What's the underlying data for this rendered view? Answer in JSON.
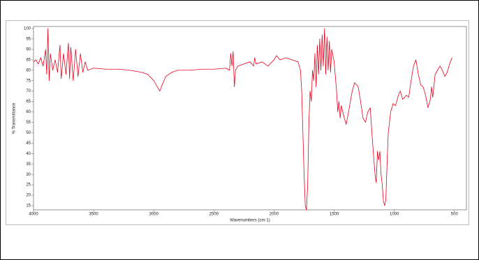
{
  "chart_data": {
    "type": "line",
    "xlabel": "Wavenumbers (cm-1)",
    "ylabel": "% Transmittance",
    "color": "#e8001c",
    "xlim": [
      4000,
      400
    ],
    "xticks": [
      4000,
      3500,
      3000,
      2500,
      2000,
      1500,
      1000,
      500
    ],
    "ylim": [
      13,
      101
    ],
    "yticks": [
      15,
      20,
      25,
      30,
      35,
      40,
      45,
      50,
      55,
      60,
      65,
      70,
      75,
      80,
      85,
      90,
      95,
      100
    ],
    "x": [
      4000,
      3980,
      3960,
      3940,
      3920,
      3900,
      3890,
      3880,
      3870,
      3860,
      3840,
      3820,
      3800,
      3780,
      3770,
      3750,
      3730,
      3710,
      3700,
      3690,
      3670,
      3650,
      3630,
      3610,
      3590,
      3570,
      3550,
      3500,
      3400,
      3300,
      3200,
      3100,
      3050,
      3000,
      2970,
      2950,
      2930,
      2900,
      2850,
      2800,
      2700,
      2600,
      2500,
      2400,
      2370,
      2360,
      2350,
      2340,
      2330,
      2320,
      2300,
      2250,
      2200,
      2170,
      2160,
      2150,
      2100,
      2050,
      2000,
      1980,
      1950,
      1900,
      1850,
      1800,
      1780,
      1770,
      1760,
      1750,
      1740,
      1730,
      1720,
      1710,
      1700,
      1690,
      1680,
      1670,
      1660,
      1650,
      1640,
      1630,
      1620,
      1610,
      1600,
      1590,
      1580,
      1570,
      1560,
      1550,
      1540,
      1530,
      1520,
      1500,
      1480,
      1470,
      1460,
      1450,
      1440,
      1420,
      1400,
      1380,
      1350,
      1330,
      1300,
      1280,
      1260,
      1240,
      1220,
      1200,
      1180,
      1160,
      1150,
      1140,
      1130,
      1120,
      1110,
      1100,
      1090,
      1080,
      1070,
      1060,
      1050,
      1030,
      1010,
      990,
      960,
      950,
      930,
      900,
      880,
      860,
      840,
      820,
      800,
      780,
      760,
      740,
      720,
      700,
      690,
      680,
      660,
      640,
      620,
      600,
      580,
      560,
      540,
      520
    ],
    "values": [
      84,
      85,
      83,
      86,
      82,
      90,
      78,
      100,
      75,
      88,
      80,
      85,
      79,
      92,
      76,
      88,
      78,
      93,
      76,
      91,
      75,
      90,
      77,
      88,
      79,
      84,
      80,
      81,
      80.5,
      80.5,
      80,
      79,
      78,
      75,
      72,
      70,
      73,
      77,
      79,
      80,
      80,
      80.5,
      80.5,
      81,
      80,
      88,
      82,
      89,
      72,
      80,
      82,
      83,
      84,
      82,
      86,
      83,
      84,
      82,
      85,
      87,
      85,
      86,
      85,
      84,
      80,
      70,
      50,
      30,
      15,
      13,
      25,
      55,
      70,
      65,
      80,
      75,
      88,
      72,
      92,
      78,
      95,
      80,
      97,
      82,
      100,
      78,
      96,
      80,
      94,
      79,
      90,
      84,
      70,
      60,
      65,
      57,
      63,
      58,
      54,
      60,
      70,
      74,
      72,
      65,
      57,
      55,
      60,
      62,
      45,
      30,
      26,
      41,
      37,
      41,
      30,
      25,
      17,
      15,
      18,
      35,
      50,
      60,
      64,
      63,
      69,
      70,
      66,
      68,
      67,
      75,
      82,
      85,
      78,
      73,
      72,
      68,
      62,
      66,
      72,
      67,
      78,
      80,
      82,
      80,
      77,
      79,
      83,
      86
    ]
  }
}
